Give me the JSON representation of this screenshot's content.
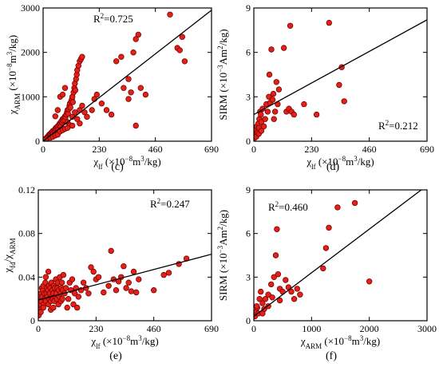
{
  "chart_data": [
    {
      "panel": "(c)",
      "type": "scatter",
      "xlabel": {
        "sym": "χ",
        "sub": "lf",
        "unit_pre": " (×10",
        "unit_sup": "−8",
        "unit_mid": "m",
        "unit_sup2": "3",
        "unit_post": "/kg)"
      },
      "ylabel": {
        "sym": "χ",
        "sub": "ARM",
        "unit_pre": " (×10",
        "unit_sup": "−8",
        "unit_mid": "m",
        "unit_sup2": "3",
        "unit_post": "/kg)"
      },
      "xlim": [
        0,
        690
      ],
      "ylim": [
        0,
        3000
      ],
      "xticks": [
        "0",
        "230",
        "460",
        "690"
      ],
      "yticks": [
        "0",
        "1000",
        "2000",
        "3000"
      ],
      "r2": "0.725",
      "fit": {
        "x": [
          0,
          690
        ],
        "y": [
          0,
          2950
        ]
      },
      "points": [
        [
          2,
          5
        ],
        [
          4,
          15
        ],
        [
          6,
          30
        ],
        [
          8,
          45
        ],
        [
          10,
          40
        ],
        [
          12,
          60
        ],
        [
          15,
          80
        ],
        [
          18,
          70
        ],
        [
          20,
          110
        ],
        [
          22,
          100
        ],
        [
          25,
          150
        ],
        [
          28,
          130
        ],
        [
          30,
          170
        ],
        [
          32,
          160
        ],
        [
          35,
          200
        ],
        [
          38,
          190
        ],
        [
          40,
          230
        ],
        [
          42,
          180
        ],
        [
          45,
          240
        ],
        [
          48,
          260
        ],
        [
          50,
          210
        ],
        [
          52,
          300
        ],
        [
          55,
          280
        ],
        [
          58,
          320
        ],
        [
          60,
          340
        ],
        [
          62,
          260
        ],
        [
          65,
          360
        ],
        [
          68,
          400
        ],
        [
          70,
          380
        ],
        [
          72,
          330
        ],
        [
          75,
          450
        ],
        [
          78,
          420
        ],
        [
          80,
          500
        ],
        [
          82,
          460
        ],
        [
          85,
          520
        ],
        [
          88,
          480
        ],
        [
          90,
          560
        ],
        [
          92,
          540
        ],
        [
          95,
          600
        ],
        [
          98,
          650
        ],
        [
          100,
          700
        ],
        [
          102,
          620
        ],
        [
          105,
          720
        ],
        [
          108,
          800
        ],
        [
          110,
          850
        ],
        [
          112,
          760
        ],
        [
          115,
          900
        ],
        [
          118,
          950
        ],
        [
          120,
          1000
        ],
        [
          122,
          880
        ],
        [
          125,
          1100
        ],
        [
          128,
          1200
        ],
        [
          130,
          1300
        ],
        [
          132,
          1150
        ],
        [
          135,
          1400
        ],
        [
          138,
          1500
        ],
        [
          140,
          1600
        ],
        [
          145,
          1700
        ],
        [
          150,
          1800
        ],
        [
          155,
          1850
        ],
        [
          160,
          1900
        ],
        [
          50,
          560
        ],
        [
          60,
          700
        ],
        [
          70,
          1000
        ],
        [
          80,
          1050
        ],
        [
          90,
          1200
        ],
        [
          100,
          430
        ],
        [
          110,
          360
        ],
        [
          120,
          550
        ],
        [
          130,
          650
        ],
        [
          140,
          500
        ],
        [
          150,
          700
        ],
        [
          160,
          800
        ],
        [
          170,
          650
        ],
        [
          180,
          550
        ],
        [
          200,
          700
        ],
        [
          210,
          950
        ],
        [
          220,
          1050
        ],
        [
          240,
          850
        ],
        [
          260,
          700
        ],
        [
          280,
          600
        ],
        [
          300,
          1800
        ],
        [
          320,
          1900
        ],
        [
          330,
          1200
        ],
        [
          350,
          1400
        ],
        [
          360,
          1100
        ],
        [
          370,
          2000
        ],
        [
          380,
          2300
        ],
        [
          390,
          2400
        ],
        [
          400,
          1200
        ],
        [
          420,
          1050
        ],
        [
          380,
          350
        ],
        [
          350,
          950
        ],
        [
          520,
          2850
        ],
        [
          550,
          2100
        ],
        [
          560,
          2050
        ],
        [
          570,
          2350
        ],
        [
          580,
          1800
        ],
        [
          30,
          80
        ],
        [
          40,
          100
        ],
        [
          50,
          130
        ],
        [
          60,
          150
        ],
        [
          70,
          220
        ],
        [
          80,
          250
        ],
        [
          90,
          280
        ],
        [
          100,
          300
        ],
        [
          120,
          350
        ],
        [
          150,
          400
        ],
        [
          5,
          20
        ],
        [
          10,
          30
        ]
      ]
    },
    {
      "panel": "(d)",
      "type": "scatter",
      "xlabel": {
        "sym": "χ",
        "sub": "lf",
        "unit_pre": " (×10",
        "unit_sup": "−8",
        "unit_mid": "m",
        "unit_sup2": "3",
        "unit_post": "/kg)"
      },
      "ylabel": {
        "sym": "SIRM",
        "sub": "",
        "unit_pre": " (×10",
        "unit_sup": "−3",
        "unit_mid": "Am",
        "unit_sup2": "2",
        "unit_post": "/kg)"
      },
      "xlim": [
        0,
        690
      ],
      "ylim": [
        0,
        9
      ],
      "xticks": [
        "0",
        "230",
        "460",
        "690"
      ],
      "yticks": [
        "0",
        "3",
        "6",
        "9"
      ],
      "r2": "0.212",
      "fit": {
        "x": [
          0,
          690
        ],
        "y": [
          1.8,
          8.2
        ]
      },
      "points": [
        [
          2,
          0.2
        ],
        [
          5,
          0.5
        ],
        [
          8,
          0.8
        ],
        [
          10,
          0.3
        ],
        [
          12,
          1.0
        ],
        [
          15,
          0.6
        ],
        [
          18,
          1.2
        ],
        [
          20,
          0.9
        ],
        [
          22,
          1.5
        ],
        [
          25,
          2.0
        ],
        [
          28,
          1.8
        ],
        [
          30,
          1.3
        ],
        [
          35,
          2.2
        ],
        [
          40,
          1.0
        ],
        [
          45,
          1.5
        ],
        [
          50,
          2.5
        ],
        [
          55,
          2.0
        ],
        [
          60,
          3.0
        ],
        [
          62,
          4.5
        ],
        [
          65,
          2.6
        ],
        [
          70,
          6.2
        ],
        [
          75,
          2.8
        ],
        [
          78,
          3.2
        ],
        [
          80,
          1.5
        ],
        [
          85,
          2.0
        ],
        [
          90,
          4.0
        ],
        [
          95,
          2.5
        ],
        [
          100,
          3.5
        ],
        [
          120,
          6.3
        ],
        [
          130,
          2.0
        ],
        [
          140,
          2.2
        ],
        [
          145,
          7.8
        ],
        [
          150,
          2.0
        ],
        [
          160,
          1.8
        ],
        [
          200,
          2.5
        ],
        [
          250,
          1.8
        ],
        [
          300,
          8.0
        ],
        [
          340,
          3.8
        ],
        [
          350,
          5.0
        ],
        [
          360,
          2.7
        ],
        [
          20,
          0.5
        ],
        [
          30,
          0.7
        ]
      ]
    },
    {
      "panel": "(e)",
      "type": "scatter",
      "xlabel": {
        "sym": "χ",
        "sub": "lf",
        "unit_pre": " (×10",
        "unit_sup": "−8",
        "unit_mid": "m",
        "unit_sup2": "3",
        "unit_post": "/kg)"
      },
      "ylabel": {
        "sym": "χ",
        "sub": "fd",
        "mid": "/χ",
        "sub2": "ARM"
      },
      "xlim": [
        0,
        690
      ],
      "ylim": [
        0,
        0.12
      ],
      "xticks": [
        "0",
        "230",
        "460",
        "690"
      ],
      "yticks": [
        "0",
        "0.04",
        "0.08",
        "0.12"
      ],
      "r2": "0.247",
      "fit": {
        "x": [
          0,
          690
        ],
        "y": [
          0.019,
          0.061
        ]
      },
      "points": [
        [
          2,
          0.005
        ],
        [
          4,
          0.01
        ],
        [
          6,
          0.015
        ],
        [
          8,
          0.02
        ],
        [
          10,
          0.025
        ],
        [
          12,
          0.018
        ],
        [
          14,
          0.03
        ],
        [
          16,
          0.022
        ],
        [
          18,
          0.028
        ],
        [
          20,
          0.032
        ],
        [
          22,
          0.015
        ],
        [
          24,
          0.025
        ],
        [
          26,
          0.02
        ],
        [
          28,
          0.035
        ],
        [
          30,
          0.018
        ],
        [
          32,
          0.025
        ],
        [
          34,
          0.03
        ],
        [
          36,
          0.022
        ],
        [
          38,
          0.028
        ],
        [
          40,
          0.015
        ],
        [
          42,
          0.032
        ],
        [
          44,
          0.02
        ],
        [
          46,
          0.025
        ],
        [
          48,
          0.03
        ],
        [
          50,
          0.018
        ],
        [
          52,
          0.035
        ],
        [
          54,
          0.022
        ],
        [
          56,
          0.028
        ],
        [
          58,
          0.02
        ],
        [
          60,
          0.025
        ],
        [
          62,
          0.032
        ],
        [
          64,
          0.018
        ],
        [
          66,
          0.03
        ],
        [
          68,
          0.022
        ],
        [
          70,
          0.038
        ],
        [
          72,
          0.025
        ],
        [
          74,
          0.02
        ],
        [
          76,
          0.03
        ],
        [
          78,
          0.035
        ],
        [
          80,
          0.015
        ],
        [
          82,
          0.028
        ],
        [
          84,
          0.022
        ],
        [
          86,
          0.04
        ],
        [
          88,
          0.025
        ],
        [
          90,
          0.018
        ],
        [
          92,
          0.03
        ],
        [
          94,
          0.035
        ],
        [
          96,
          0.02
        ],
        [
          98,
          0.028
        ],
        [
          100,
          0.042
        ],
        [
          105,
          0.025
        ],
        [
          110,
          0.03
        ],
        [
          115,
          0.012
        ],
        [
          120,
          0.02
        ],
        [
          125,
          0.035
        ],
        [
          130,
          0.028
        ],
        [
          135,
          0.038
        ],
        [
          140,
          0.015
        ],
        [
          145,
          0.025
        ],
        [
          150,
          0.03
        ],
        [
          155,
          0.012
        ],
        [
          160,
          0.022
        ],
        [
          170,
          0.028
        ],
        [
          180,
          0.035
        ],
        [
          190,
          0.03
        ],
        [
          200,
          0.025
        ],
        [
          210,
          0.049
        ],
        [
          220,
          0.045
        ],
        [
          230,
          0.038
        ],
        [
          240,
          0.04
        ],
        [
          260,
          0.026
        ],
        [
          280,
          0.032
        ],
        [
          290,
          0.064
        ],
        [
          300,
          0.038
        ],
        [
          310,
          0.028
        ],
        [
          320,
          0.036
        ],
        [
          330,
          0.04
        ],
        [
          340,
          0.05
        ],
        [
          350,
          0.03
        ],
        [
          360,
          0.035
        ],
        [
          370,
          0.027
        ],
        [
          380,
          0.045
        ],
        [
          390,
          0.026
        ],
        [
          400,
          0.038
        ],
        [
          460,
          0.028
        ],
        [
          500,
          0.042
        ],
        [
          520,
          0.044
        ],
        [
          560,
          0.052
        ],
        [
          590,
          0.057
        ],
        [
          10,
          0.008
        ],
        [
          20,
          0.012
        ],
        [
          30,
          0.04
        ],
        [
          40,
          0.045
        ],
        [
          50,
          0.01
        ],
        [
          60,
          0.012
        ]
      ]
    },
    {
      "panel": "(f)",
      "type": "scatter",
      "xlabel": {
        "sym": "χ",
        "sub": "ARM",
        "unit_pre": " (×10",
        "unit_sup": "−8",
        "unit_mid": "m",
        "unit_sup2": "3",
        "unit_post": "/kg)"
      },
      "ylabel": {
        "sym": "SIRM",
        "sub": "",
        "unit_pre": " (×10",
        "unit_sup": "−3",
        "unit_mid": "Am",
        "unit_sup2": "2",
        "unit_post": "/kg)"
      },
      "xlim": [
        0,
        3000
      ],
      "ylim": [
        0,
        9
      ],
      "xticks": [
        "0",
        "1000",
        "2000",
        "3000"
      ],
      "yticks": [
        "0",
        "3",
        "6",
        "9"
      ],
      "r2": "0.460",
      "fit": {
        "x": [
          0,
          2900
        ],
        "y": [
          0.3,
          9.0
        ]
      },
      "points": [
        [
          20,
          0.3
        ],
        [
          40,
          0.6
        ],
        [
          60,
          0.9
        ],
        [
          80,
          0.5
        ],
        [
          100,
          1.5
        ],
        [
          120,
          2.0
        ],
        [
          150,
          1.2
        ],
        [
          180,
          0.8
        ],
        [
          200,
          1.5
        ],
        [
          250,
          1.8
        ],
        [
          300,
          2.5
        ],
        [
          320,
          1.6
        ],
        [
          350,
          3.0
        ],
        [
          380,
          4.5
        ],
        [
          400,
          6.3
        ],
        [
          420,
          3.2
        ],
        [
          450,
          2.2
        ],
        [
          500,
          2.0
        ],
        [
          550,
          2.8
        ],
        [
          600,
          2.3
        ],
        [
          650,
          2.0
        ],
        [
          700,
          1.5
        ],
        [
          750,
          2.2
        ],
        [
          800,
          1.8
        ],
        [
          1200,
          3.6
        ],
        [
          1250,
          5.0
        ],
        [
          1300,
          6.4
        ],
        [
          1450,
          7.8
        ],
        [
          1750,
          8.1
        ],
        [
          2000,
          2.7
        ],
        [
          50,
          1.0
        ],
        [
          150,
          0.5
        ],
        [
          250,
          1.0
        ],
        [
          450,
          1.4
        ]
      ]
    }
  ]
}
